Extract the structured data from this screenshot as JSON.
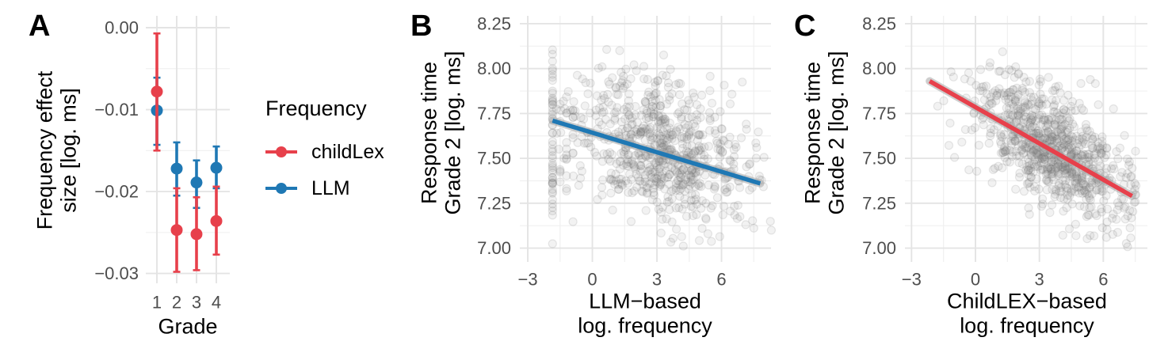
{
  "style": {
    "background": "#FFFFFF",
    "tick_label_color": "#4D4D4D",
    "title_color": "#000000",
    "grid_major": "#E4E4E4",
    "grid_minor": "#F0F0F0",
    "scatter_fill": "rgba(125,125,125,0.10)",
    "scatter_stroke": "rgba(110,110,110,0.16)",
    "band_color": "rgba(165,165,165,0.55)",
    "red": "#E7404B",
    "blue": "#1F78B4"
  },
  "legend": {
    "title": "Frequency",
    "items": [
      {
        "label": "childLex",
        "color": "#E7404B"
      },
      {
        "label": "LLM",
        "color": "#1F78B4"
      }
    ]
  },
  "chart_data": [
    {
      "letter": "A",
      "type": "pointrange",
      "ylabel_lines": [
        "Frequency effect",
        "size [log. ms]"
      ],
      "xlabel": "Grade",
      "categories": [
        "1",
        "2",
        "3",
        "4"
      ],
      "y_ticks": {
        "values": [
          0,
          -0.01,
          -0.02,
          -0.03
        ],
        "labels": [
          "0.00",
          "−0.01",
          "−0.02",
          "−0.03"
        ]
      },
      "ylim": [
        -0.0312,
        0.00145
      ],
      "series": [
        {
          "name": "childLex",
          "color": "#E7404B",
          "means": [
            -0.0078,
            -0.0247,
            -0.0252,
            -0.0236
          ],
          "ci_low": [
            -0.015,
            -0.0298,
            -0.0296,
            -0.0277
          ],
          "ci_high": [
            -0.0007,
            -0.0196,
            -0.0207,
            -0.0194
          ]
        },
        {
          "name": "LLM",
          "color": "#1F78B4",
          "means": [
            -0.0101,
            -0.0172,
            -0.0189,
            -0.0171
          ],
          "ci_low": [
            -0.0143,
            -0.0205,
            -0.022,
            -0.0196
          ],
          "ci_high": [
            -0.0061,
            -0.014,
            -0.0162,
            -0.0145
          ]
        }
      ]
    },
    {
      "letter": "B",
      "type": "scatter",
      "ylabel_lines": [
        "Response time",
        "Grade 2 [log. ms]"
      ],
      "xlabel_lines": [
        "LLM−based",
        "log. frequency"
      ],
      "x_ticks": {
        "values": [
          -3,
          0,
          3,
          6
        ],
        "labels": [
          "−3",
          "0",
          "3",
          "6"
        ]
      },
      "y_ticks": {
        "values": [
          8.25,
          8.0,
          7.75,
          7.5,
          7.25,
          7.0
        ],
        "labels": [
          "8.25",
          "8.00",
          "7.75",
          "7.50",
          "7.25",
          "7.00"
        ]
      },
      "xlim": [
        -3.37,
        8.3
      ],
      "ylim": [
        6.923,
        8.294
      ],
      "fit_line": {
        "color": "#1F78B4",
        "x1": -1.85,
        "y1": 7.71,
        "x2": 7.8,
        "y2": 7.36
      },
      "scatter": {
        "seed": 11,
        "n_cloud": 730,
        "x_mean": 3.3,
        "x_sd": 2.05,
        "x_min": -1.85,
        "x_max": 8.32,
        "pile_left": true,
        "slope": -0.0363,
        "y_anchor_x": 3.3,
        "y_mean": 7.54,
        "y_noise": 0.185,
        "y_min": 6.99,
        "y_max": 8.13,
        "strips": [
          {
            "x": -1.85,
            "n": 46,
            "y_mean": 7.62,
            "y_sd": 0.27
          },
          {
            "x": -1.5,
            "n": 6,
            "y_mean": 7.6,
            "y_sd": 0.22
          },
          {
            "x": -1.2,
            "n": 9,
            "y_mean": 7.62,
            "y_sd": 0.24
          },
          {
            "x": -0.9,
            "n": 8,
            "y_mean": 7.6,
            "y_sd": 0.22
          }
        ]
      }
    },
    {
      "letter": "C",
      "type": "scatter",
      "ylabel_lines": [
        "Response time",
        "Grade 2 [log. ms]"
      ],
      "xlabel_lines": [
        "ChildLEX−based",
        "log. frequency"
      ],
      "x_ticks": {
        "values": [
          -3,
          0,
          3,
          6
        ],
        "labels": [
          "−3",
          "0",
          "3",
          "6"
        ]
      },
      "y_ticks": {
        "values": [
          8.25,
          8.0,
          7.75,
          7.5,
          7.25,
          7.0
        ],
        "labels": [
          "8.25",
          "8.00",
          "7.75",
          "7.50",
          "7.25",
          "7.00"
        ]
      },
      "xlim": [
        -3.31,
        8.07
      ],
      "ylim": [
        6.923,
        8.294
      ],
      "fit_line": {
        "color": "#E7404B",
        "x1": -2.15,
        "y1": 7.93,
        "x2": 7.35,
        "y2": 7.29
      },
      "scatter": {
        "seed": 23,
        "n_cloud": 830,
        "x_mean": 3.45,
        "x_sd": 1.72,
        "x_min": -2.3,
        "x_max": 7.55,
        "pile_left": false,
        "slope": -0.0672,
        "y_anchor_x": 3.45,
        "y_mean": 7.555,
        "y_noise": 0.155,
        "y_min": 6.99,
        "y_max": 8.12,
        "strips": []
      }
    }
  ]
}
